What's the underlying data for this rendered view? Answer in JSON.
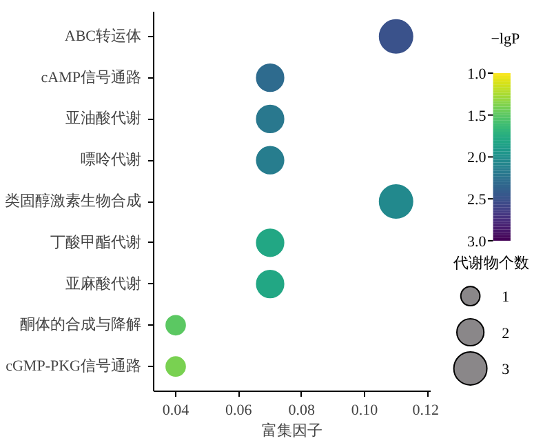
{
  "chart_data": {
    "type": "bubble",
    "orientation": "horizontal",
    "xlabel": "富集因子",
    "clabel": "−lgP",
    "legend_title": "代谢物个数",
    "categories": [
      "ABC转运体",
      "cAMP信号通路",
      "亚油酸代谢",
      "嘌呤代谢",
      "类固醇激素生物合成",
      "丁酸甲酯代谢",
      "亚麻酸代谢",
      "酮体的合成与降解",
      "cGMP-PKG信号通路"
    ],
    "values": [
      0.11,
      0.07,
      0.07,
      0.07,
      0.11,
      0.07,
      0.07,
      0.04,
      0.04
    ],
    "sizes": [
      3,
      2,
      2,
      2,
      3,
      2,
      2,
      1,
      1
    ],
    "cvalues": [
      2.5,
      2.3,
      2.2,
      2.15,
      2.05,
      1.8,
      1.8,
      1.5,
      1.4
    ],
    "size_legend": [
      1,
      2,
      3
    ],
    "clim": [
      1,
      3
    ],
    "cticks": [
      {
        "value": 1,
        "label": "1.0"
      },
      1.5,
      {
        "value": 2,
        "label": "2.0"
      },
      2.5,
      {
        "value": 3,
        "label": "3.0"
      }
    ],
    "xlim": [
      0.033,
      0.121
    ],
    "xticks": [
      0.04,
      0.06,
      0.08,
      {
        "value": 0.1,
        "label": "0.10"
      },
      0.12
    ],
    "grid": false
  }
}
